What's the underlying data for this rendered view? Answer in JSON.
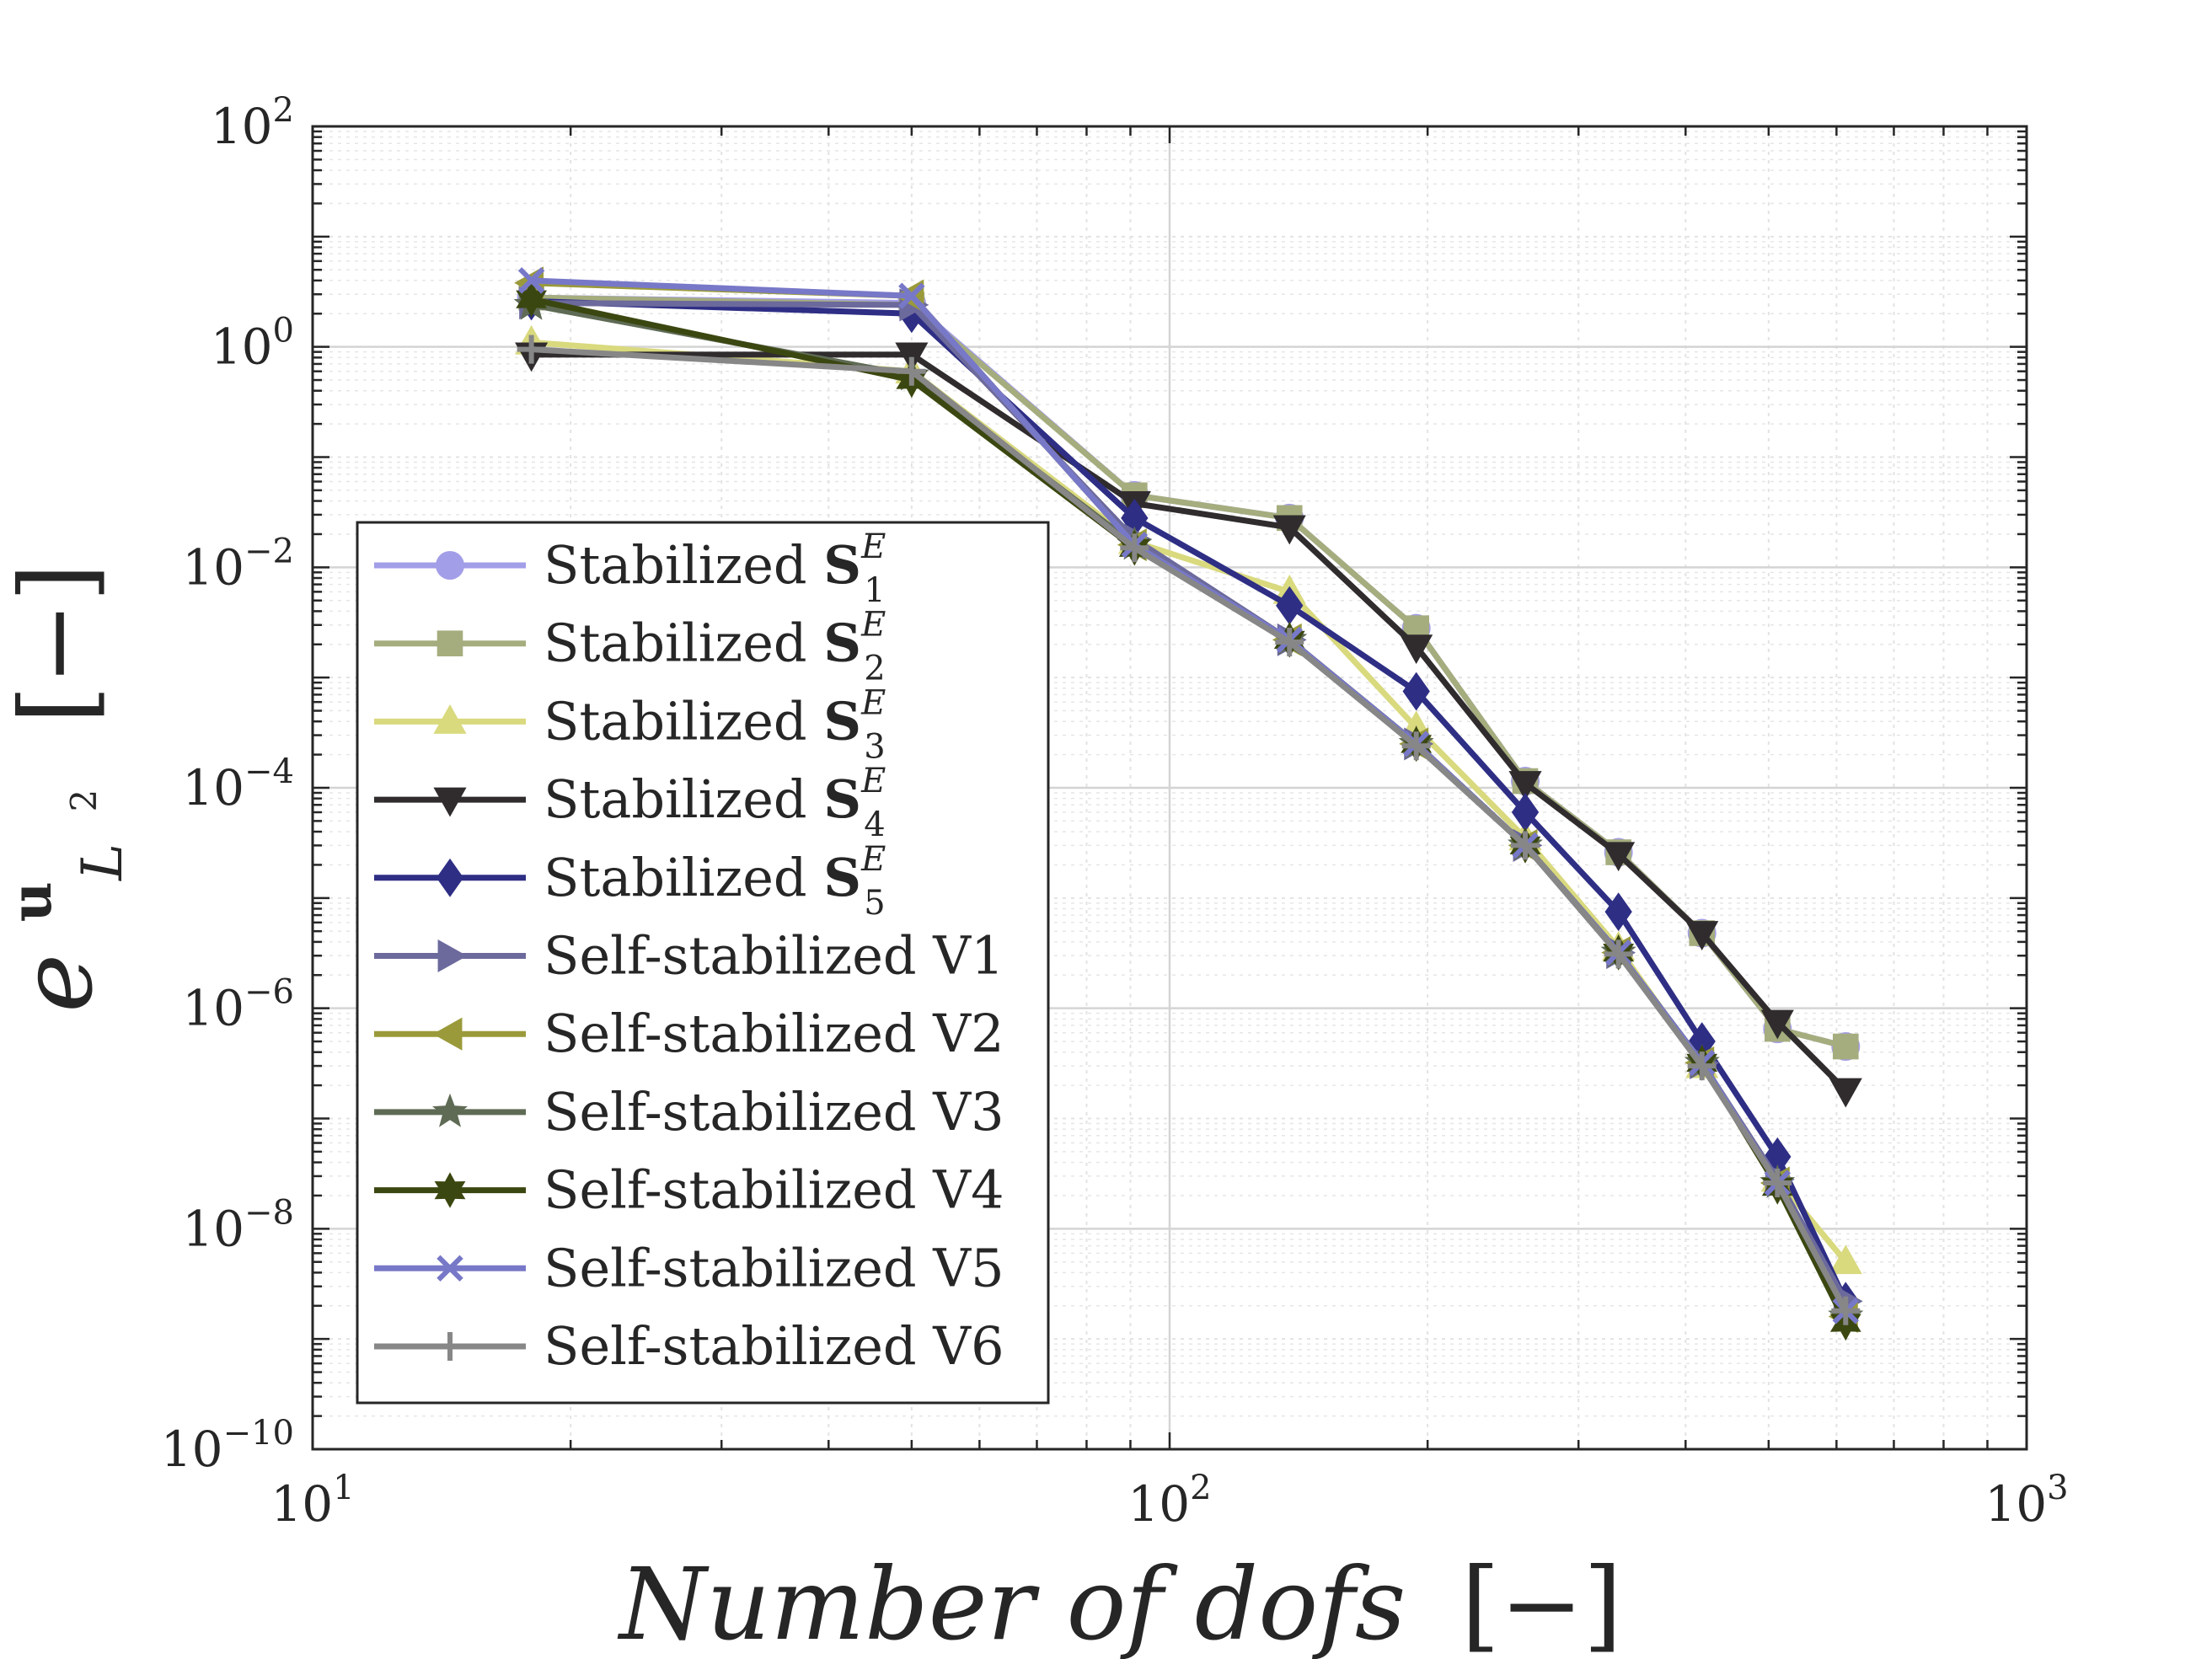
{
  "chart_data": {
    "type": "line",
    "title": "",
    "xlabel": "Number of dofs",
    "xlabel_unit": "[−]",
    "ylabel_symbol": "e",
    "ylabel_super": "u",
    "ylabel_sub": "L",
    "ylabel_sub_super": "2",
    "ylabel_unit": "[−]",
    "xscale": "log",
    "yscale": "log",
    "xlim": [
      10,
      1000
    ],
    "ylim": [
      1e-10,
      100
    ],
    "grid": true,
    "minor_grid": true,
    "legend_position": "lower-left",
    "x_ticks": [
      {
        "value": 10,
        "base": "10",
        "exp": "1"
      },
      {
        "value": 100,
        "base": "10",
        "exp": "2"
      },
      {
        "value": 1000,
        "base": "10",
        "exp": "3"
      }
    ],
    "y_ticks": [
      {
        "value": 1e-10,
        "base": "10",
        "exp": "−10"
      },
      {
        "value": 1e-08,
        "base": "10",
        "exp": "−8"
      },
      {
        "value": 1e-06,
        "base": "10",
        "exp": "−6"
      },
      {
        "value": 0.0001,
        "base": "10",
        "exp": "−4"
      },
      {
        "value": 0.01,
        "base": "10",
        "exp": "−2"
      },
      {
        "value": 1,
        "base": "10",
        "exp": "0"
      },
      {
        "value": 100,
        "base": "10",
        "exp": "2"
      }
    ],
    "x": [
      18,
      50,
      91,
      138,
      194,
      260,
      334,
      418,
      512,
      615
    ],
    "series": [
      {
        "name": "Stabilized S1E",
        "legend_prefix": "Stabilized ",
        "legend_bold": "S",
        "legend_sub": "1",
        "legend_sup": "E",
        "color": "#a39ee8",
        "marker": "circle",
        "values": [
          2.8,
          2.5,
          0.045,
          0.028,
          0.0028,
          0.000115,
          2.6e-05,
          4.8e-06,
          6.5e-07,
          4.5e-07
        ]
      },
      {
        "name": "Stabilized S2E",
        "legend_prefix": "Stabilized ",
        "legend_bold": "S",
        "legend_sub": "2",
        "legend_sup": "E",
        "color": "#a5ad7e",
        "marker": "square",
        "values": [
          2.8,
          2.4,
          0.045,
          0.028,
          0.0028,
          0.000115,
          2.6e-05,
          4.8e-06,
          6.5e-07,
          4.5e-07
        ]
      },
      {
        "name": "Stabilized S3E",
        "legend_prefix": "Stabilized ",
        "legend_bold": "S",
        "legend_sub": "3",
        "legend_sup": "E",
        "color": "#d9d97e",
        "marker": "triangle-up",
        "values": [
          1.1,
          0.6,
          0.017,
          0.006,
          0.00035,
          3.5e-05,
          3.5e-06,
          3e-07,
          2.8e-08,
          5e-09
        ]
      },
      {
        "name": "Stabilized S4E",
        "legend_prefix": "Stabilized ",
        "legend_bold": "S",
        "legend_sub": "4",
        "legend_sup": "E",
        "color": "#302c2e",
        "marker": "triangle-down",
        "values": [
          0.85,
          0.85,
          0.038,
          0.023,
          0.0019,
          0.00011,
          2.5e-05,
          4.8e-06,
          7.5e-07,
          1.8e-07
        ]
      },
      {
        "name": "Stabilized S5E",
        "legend_prefix": "Stabilized ",
        "legend_bold": "S",
        "legend_sub": "5",
        "legend_sup": "E",
        "color": "#2e2e85",
        "marker": "diamond",
        "values": [
          2.6,
          2.0,
          0.028,
          0.0045,
          0.00075,
          6e-05,
          7.5e-06,
          5e-07,
          4.5e-08,
          2.2e-09
        ]
      },
      {
        "name": "Self-stabilized V1",
        "legend_text": "Self-stabilized V1",
        "color": "#6c699c",
        "marker": "triangle-right",
        "values": [
          2.5,
          2.4,
          0.018,
          0.0022,
          0.00025,
          3e-05,
          3.2e-06,
          3.2e-07,
          2.8e-08,
          2.2e-09
        ]
      },
      {
        "name": "Self-stabilized V2",
        "legend_text": "Self-stabilized V2",
        "color": "#9a9a3a",
        "marker": "triangle-left",
        "values": [
          3.8,
          2.9,
          0.016,
          0.0022,
          0.00025,
          3e-05,
          3.2e-06,
          3.2e-07,
          2.6e-08,
          1.6e-09
        ]
      },
      {
        "name": "Self-stabilized V3",
        "legend_text": "Self-stabilized V3",
        "color": "#5f6b55",
        "marker": "star",
        "values": [
          2.4,
          0.55,
          0.016,
          0.0022,
          0.00025,
          3e-05,
          3.2e-06,
          3.2e-07,
          2.6e-08,
          1.6e-09
        ]
      },
      {
        "name": "Self-stabilized V4",
        "legend_text": "Self-stabilized V4",
        "color": "#3b4710",
        "marker": "hexagram",
        "values": [
          2.7,
          0.5,
          0.015,
          0.0022,
          0.00025,
          3e-05,
          3.2e-06,
          3.2e-07,
          2.4e-08,
          1.4e-09
        ]
      },
      {
        "name": "Self-stabilized V5",
        "legend_text": "Self-stabilized V5",
        "color": "#7878c8",
        "marker": "x",
        "values": [
          4.0,
          2.9,
          0.016,
          0.0022,
          0.00025,
          3e-05,
          3.2e-06,
          3.2e-07,
          2.6e-08,
          1.8e-09
        ]
      },
      {
        "name": "Self-stabilized V6",
        "legend_text": "Self-stabilized V6",
        "color": "#878787",
        "marker": "plus",
        "values": [
          0.95,
          0.6,
          0.015,
          0.0021,
          0.00024,
          3e-05,
          3.1e-06,
          3e-07,
          2.6e-08,
          1.8e-09
        ]
      }
    ]
  }
}
